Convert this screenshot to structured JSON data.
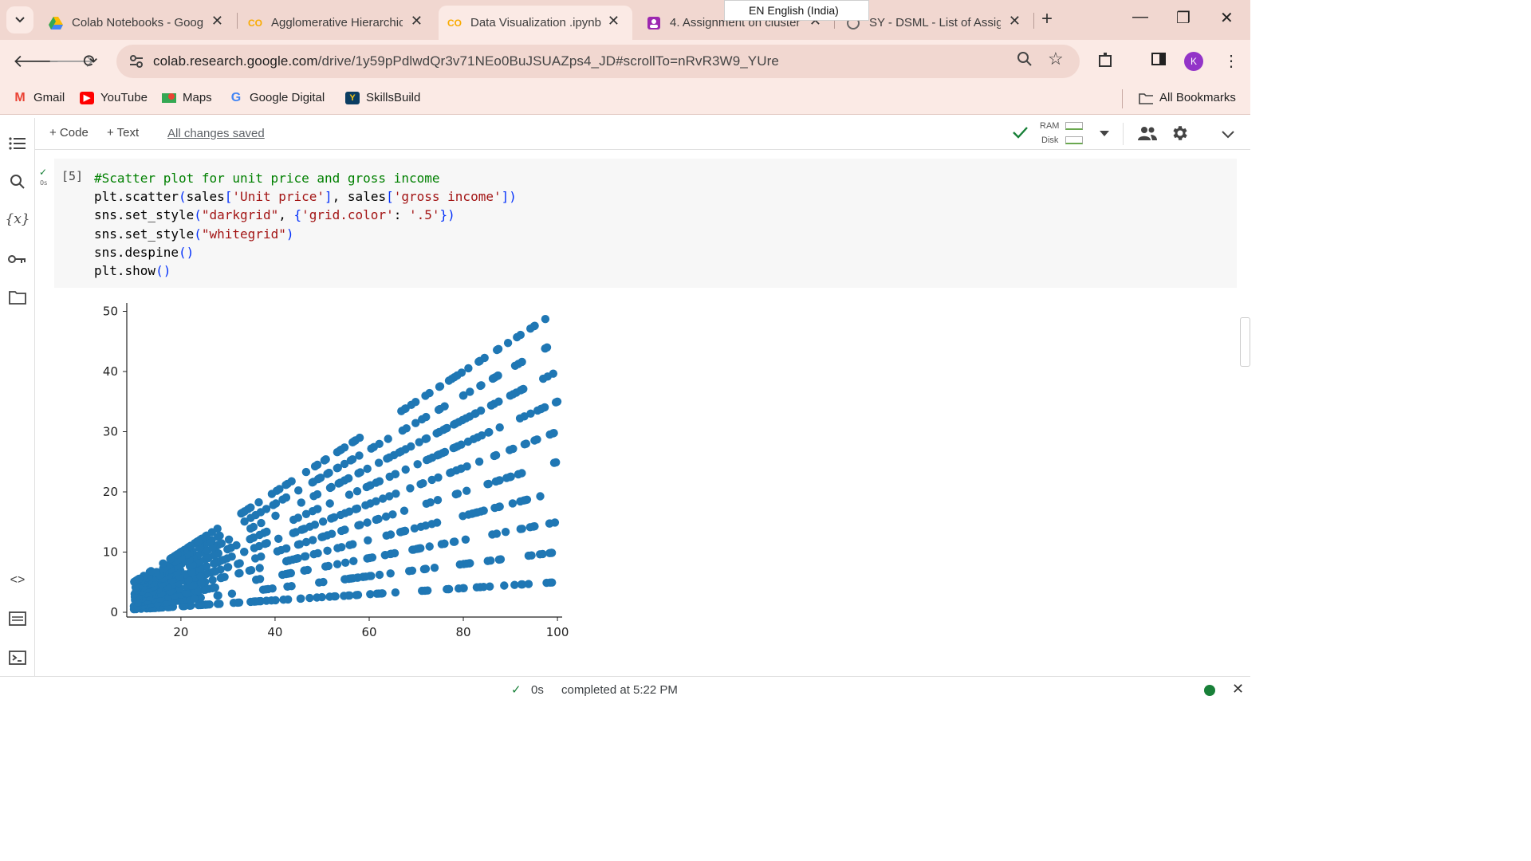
{
  "browser": {
    "tabs": [
      {
        "title": "Colab Notebooks - Goog",
        "icon": "google-drive-icon",
        "active": false
      },
      {
        "title": "Agglomerative Hierarchic",
        "icon": "colab-icon",
        "active": false
      },
      {
        "title": "Data Visualization .ipynb",
        "icon": "colab-icon",
        "active": true
      },
      {
        "title": "4. Assignment on cluster",
        "icon": "classroom-icon",
        "active": false
      },
      {
        "title": "SY - DSML - List of Assig",
        "icon": "site-icon",
        "active": false
      }
    ],
    "ime_indicator": "EN English (India)",
    "url_host": "colab.research.google.com",
    "url_path": "/drive/1y59pPdlwdQr3v71NEo0BuJSUAZps4_JD#scrollTo=nRvR3W9_YUre",
    "avatar_letter": "K",
    "bookmarks": [
      {
        "label": "Gmail",
        "icon": "gmail-icon"
      },
      {
        "label": "YouTube",
        "icon": "youtube-icon"
      },
      {
        "label": "Maps",
        "icon": "maps-icon"
      },
      {
        "label": "Google Digital",
        "icon": "google-icon"
      },
      {
        "label": "SkillsBuild",
        "icon": "skillsbuild-icon"
      }
    ],
    "all_bookmarks": "All Bookmarks"
  },
  "colab": {
    "toolbar": {
      "code_label": "+ Code",
      "text_label": "+ Text",
      "save_status": "All changes saved",
      "ram_label": "RAM",
      "disk_label": "Disk"
    },
    "cell": {
      "execution_count": "[5]",
      "run_time": "0s",
      "code_lines": [
        "#Scatter plot for unit price and gross income",
        "plt.scatter(sales['Unit price'], sales['gross income'])",
        "sns.set_style(\"darkgrid\", {'grid.color': '.5'})",
        "sns.set_style(\"whitegrid\")",
        "sns.despine()",
        "plt.show()"
      ]
    },
    "status": {
      "elapsed": "0s",
      "message": "completed at 5:22 PM"
    }
  },
  "chart_data": {
    "type": "scatter",
    "title": "",
    "xlabel": "",
    "ylabel": "",
    "xlim": [
      10,
      100
    ],
    "ylim": [
      0,
      50
    ],
    "xticks": [
      20,
      40,
      60,
      80,
      100
    ],
    "yticks": [
      0,
      10,
      20,
      30,
      40,
      50
    ],
    "grid": false,
    "marker_color": "#1f77b4",
    "description_of_pattern": "gross income = unit price x quantity x 0.05 for quantity 1..10",
    "rays_slope": [
      0.05,
      0.1,
      0.15,
      0.2,
      0.25,
      0.3,
      0.35,
      0.4,
      0.45,
      0.5
    ]
  }
}
